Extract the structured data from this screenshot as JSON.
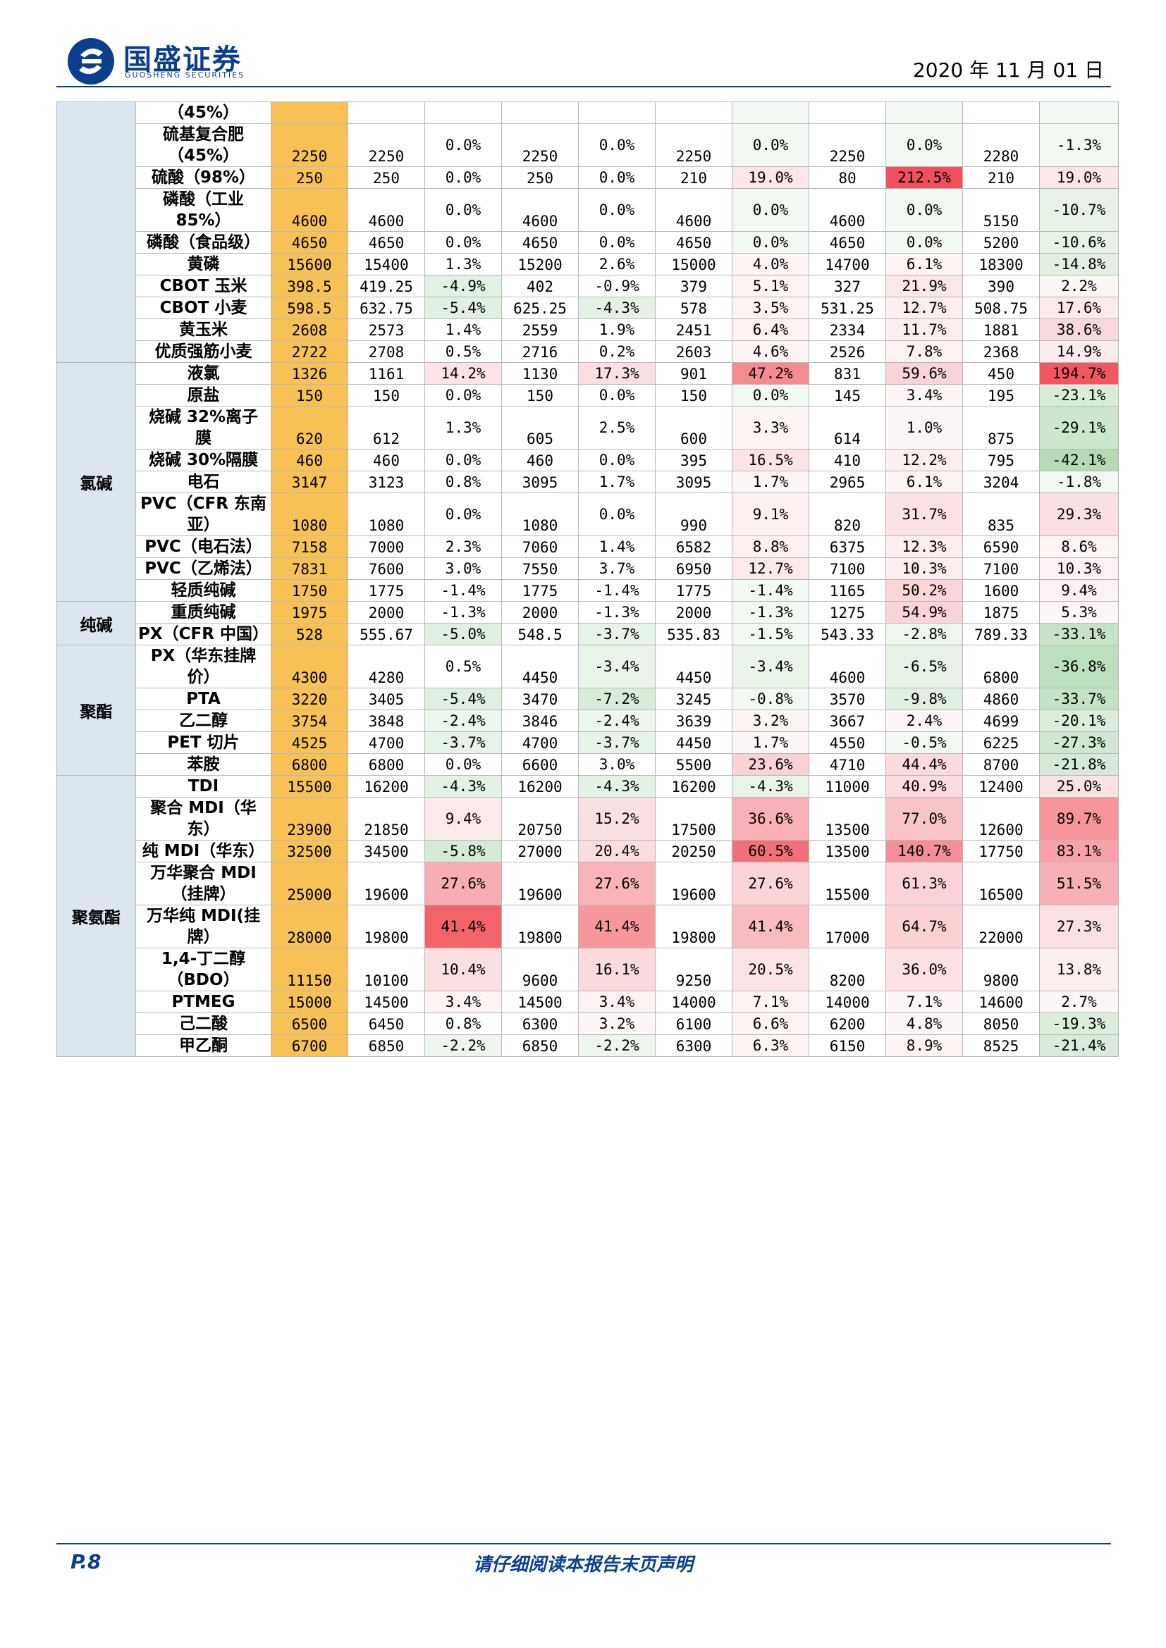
{
  "header": {
    "brand_cn": "国盛证券",
    "brand_en": "GUOSHENG SECURITIES",
    "date": "2020 年 11 月 01 日"
  },
  "colors": {
    "brand": "#0b3f8d",
    "current_col": "#f8c155",
    "group_col": "#dce6f1"
  },
  "groups": [
    {
      "label": "",
      "span": 11
    },
    {
      "label": "氯碱",
      "span": 9
    },
    {
      "label": "纯碱",
      "span": 2
    },
    {
      "label": "聚酯",
      "span": 5
    },
    {
      "label": "聚氨酯",
      "span": 12
    }
  ],
  "rows": [
    {
      "lines": [
        "（45%）"
      ],
      "cur": "",
      "v": [
        "",
        "",
        "",
        "",
        ""
      ],
      "p": [
        "",
        "",
        "",
        "",
        ""
      ],
      "c": [
        "",
        "",
        "#f2f8f2",
        "#f2f8f2",
        "#f2f8f2"
      ]
    },
    {
      "lines": [
        "硫基复合肥",
        "（45%）"
      ],
      "cur": "2250",
      "v": [
        "2250",
        "2250",
        "2250",
        "2250",
        "2280"
      ],
      "p": [
        "0.0%",
        "0.0%",
        "0.0%",
        "0.0%",
        "-1.3%"
      ],
      "c": [
        "",
        "",
        "#f2f8f2",
        "#f2f8f2",
        "#f2f8f2"
      ]
    },
    {
      "lines": [
        "硫酸（98%）"
      ],
      "cur": "250",
      "v": [
        "250",
        "250",
        "210",
        "80",
        "210"
      ],
      "p": [
        "0.0%",
        "0.0%",
        "19.0%",
        "212.5%",
        "19.0%"
      ],
      "c": [
        "",
        "",
        "#fce6e8",
        "#f04f5b",
        "#fce6e8"
      ]
    },
    {
      "lines": [
        "磷酸（工业",
        "85%）"
      ],
      "cur": "4600",
      "v": [
        "4600",
        "4600",
        "4600",
        "4600",
        "5150"
      ],
      "p": [
        "0.0%",
        "0.0%",
        "0.0%",
        "0.0%",
        "-10.7%"
      ],
      "c": [
        "",
        "",
        "#f2f8f2",
        "#f2f8f2",
        "#e6f2e6"
      ]
    },
    {
      "lines": [
        "磷酸（食品级）"
      ],
      "cur": "4650",
      "v": [
        "4650",
        "4650",
        "4650",
        "4650",
        "5200"
      ],
      "p": [
        "0.0%",
        "0.0%",
        "0.0%",
        "0.0%",
        "-10.6%"
      ],
      "c": [
        "",
        "",
        "#f2f8f2",
        "#f2f8f2",
        "#e6f2e6"
      ]
    },
    {
      "lines": [
        "黄磷"
      ],
      "cur": "15600",
      "v": [
        "15400",
        "15200",
        "15000",
        "14700",
        "18300"
      ],
      "p": [
        "1.3%",
        "2.6%",
        "4.0%",
        "6.1%",
        "-14.8%"
      ],
      "c": [
        "",
        "",
        "#fdf4f4",
        "#fdf4f4",
        "#e2f0e2"
      ]
    },
    {
      "lines": [
        "CBOT 玉米"
      ],
      "cur": "398.5",
      "v": [
        "419.25",
        "402",
        "379",
        "327",
        "390"
      ],
      "p": [
        "-4.9%",
        "-0.9%",
        "5.1%",
        "21.9%",
        "2.2%"
      ],
      "c": [
        "#e2f1e3",
        "",
        "#fdf4f4",
        "#fbe7e8",
        "#fdf6f6"
      ]
    },
    {
      "lines": [
        "CBOT 小麦"
      ],
      "cur": "598.5",
      "v": [
        "632.75",
        "625.25",
        "578",
        "531.25",
        "508.75"
      ],
      "p": [
        "-5.4%",
        "-4.3%",
        "3.5%",
        "12.7%",
        "17.6%"
      ],
      "c": [
        "#e0f0e1",
        "#e4f2e5",
        "#fdf4f4",
        "#fcedee",
        "#fce9ea"
      ]
    },
    {
      "lines": [
        "黄玉米"
      ],
      "cur": "2608",
      "v": [
        "2573",
        "2559",
        "2451",
        "2334",
        "1881"
      ],
      "p": [
        "1.4%",
        "1.9%",
        "6.4%",
        "11.7%",
        "38.6%"
      ],
      "c": [
        "",
        "",
        "#fdf1f1",
        "#fcedee",
        "#f9d9dc"
      ]
    },
    {
      "lines": [
        "优质强筋小麦"
      ],
      "cur": "2722",
      "v": [
        "2708",
        "2716",
        "2603",
        "2526",
        "2368"
      ],
      "p": [
        "0.5%",
        "0.2%",
        "4.6%",
        "7.8%",
        "14.9%"
      ],
      "c": [
        "",
        "",
        "#fdf4f4",
        "#fdf1f1",
        "#fcebec"
      ]
    },
    {
      "lines": [
        "",
        ""
      ],
      "cur": "",
      "v": [
        "",
        "",
        "",
        "",
        ""
      ],
      "p": [
        "",
        "",
        "",
        "",
        ""
      ],
      "c": [
        "",
        "",
        "",
        "",
        ""
      ],
      "hidden": true
    },
    {
      "lines": [
        "液氯"
      ],
      "cur": "1326",
      "v": [
        "1161",
        "1130",
        "901",
        "831",
        "450"
      ],
      "p": [
        "14.2%",
        "17.3%",
        "47.2%",
        "59.6%",
        "194.7%"
      ],
      "c": [
        "#fce3e5",
        "#fcdfe1",
        "#f48a92",
        "#fbd4d7",
        "#f2565f"
      ]
    },
    {
      "lines": [
        "原盐"
      ],
      "cur": "150",
      "v": [
        "150",
        "150",
        "150",
        "145",
        "195"
      ],
      "p": [
        "0.0%",
        "0.0%",
        "0.0%",
        "3.4%",
        "-23.1%"
      ],
      "c": [
        "",
        "",
        "#f2f8f2",
        "#fdf6f6",
        "#d8ecd9"
      ]
    },
    {
      "lines": [
        "烧碱 32%离子",
        "膜"
      ],
      "cur": "620",
      "v": [
        "612",
        "605",
        "600",
        "614",
        "875"
      ],
      "p": [
        "1.3%",
        "2.5%",
        "3.3%",
        "1.0%",
        "-29.1%"
      ],
      "c": [
        "",
        "",
        "#fdf4f4",
        "#fdf6f6",
        "#cde7ce"
      ]
    },
    {
      "lines": [
        "烧碱 30%隔膜"
      ],
      "cur": "460",
      "v": [
        "460",
        "460",
        "395",
        "410",
        "795"
      ],
      "p": [
        "0.0%",
        "0.0%",
        "16.5%",
        "12.2%",
        "-42.1%"
      ],
      "c": [
        "",
        "",
        "#fbe4e6",
        "#fcedee",
        "#b4dbb6"
      ]
    },
    {
      "lines": [
        "电石"
      ],
      "cur": "3147",
      "v": [
        "3123",
        "3095",
        "3095",
        "2965",
        "3204"
      ],
      "p": [
        "0.8%",
        "1.7%",
        "1.7%",
        "6.1%",
        "-1.8%"
      ],
      "c": [
        "",
        "",
        "#fdf6f6",
        "#fdf4f4",
        "#f2f8f2"
      ]
    },
    {
      "lines": [
        "PVC（CFR 东南",
        "亚）"
      ],
      "cur": "1080",
      "v": [
        "1080",
        "1080",
        "990",
        "820",
        "835"
      ],
      "p": [
        "0.0%",
        "0.0%",
        "9.1%",
        "31.7%",
        "29.3%"
      ],
      "c": [
        "",
        "",
        "#fdf0f1",
        "#fbe1e3",
        "#fbdfe1"
      ]
    },
    {
      "lines": [
        "PVC（电石法）"
      ],
      "cur": "7158",
      "v": [
        "7000",
        "7060",
        "6582",
        "6375",
        "6590"
      ],
      "p": [
        "2.3%",
        "1.4%",
        "8.8%",
        "12.3%",
        "8.6%"
      ],
      "c": [
        "",
        "",
        "#fdf0f1",
        "#fcedee",
        "#fdf4f4"
      ]
    },
    {
      "lines": [
        "PVC（乙烯法）"
      ],
      "cur": "7831",
      "v": [
        "7600",
        "7550",
        "6950",
        "7100",
        "7100"
      ],
      "p": [
        "3.0%",
        "3.7%",
        "12.7%",
        "10.3%",
        "10.3%"
      ],
      "c": [
        "",
        "",
        "#fceaeb",
        "#fcedee",
        "#fdf2f3"
      ]
    },
    {
      "lines": [
        "轻质纯碱"
      ],
      "cur": "1750",
      "v": [
        "1775",
        "1775",
        "1775",
        "1165",
        "1600"
      ],
      "p": [
        "-1.4%",
        "-1.4%",
        "-1.4%",
        "50.2%",
        "9.4%"
      ],
      "c": [
        "",
        "",
        "#f2f8f2",
        "#fbd6d9",
        "#fdf2f3"
      ]
    },
    {
      "lines": [
        "重质纯碱"
      ],
      "cur": "1975",
      "v": [
        "2000",
        "2000",
        "2000",
        "1275",
        "1875"
      ],
      "p": [
        "-1.3%",
        "-1.3%",
        "-1.3%",
        "54.9%",
        "5.3%"
      ],
      "c": [
        "",
        "",
        "#f2f8f2",
        "#fbd4d7",
        "#fdf6f6"
      ]
    },
    {
      "lines": [
        "PX（CFR 中国）"
      ],
      "cur": "528",
      "v": [
        "555.67",
        "548.5",
        "535.83",
        "543.33",
        "789.33"
      ],
      "p": [
        "-5.0%",
        "-3.7%",
        "-1.5%",
        "-2.8%",
        "-33.1%"
      ],
      "c": [
        "#e0f0e1",
        "#e6f3e7",
        "#f2f8f2",
        "#eef6ee",
        "#c6e3c7"
      ]
    },
    {
      "lines": [
        "PX（华东挂牌",
        "价）"
      ],
      "cur": "4300",
      "v": [
        "4280",
        "4450",
        "4450",
        "4600",
        "6800"
      ],
      "p": [
        "0.5%",
        "-3.4%",
        "-3.4%",
        "-6.5%",
        "-36.8%"
      ],
      "c": [
        "",
        "#e8f4e8",
        "#e8f4e8",
        "#e6f2e6",
        "#bcdfbe"
      ]
    },
    {
      "lines": [
        "PTA"
      ],
      "cur": "3220",
      "v": [
        "3405",
        "3470",
        "3245",
        "3570",
        "4860"
      ],
      "p": [
        "-5.4%",
        "-7.2%",
        "-0.8%",
        "-9.8%",
        "-33.7%"
      ],
      "c": [
        "#dff0e0",
        "#d8ecd9",
        "#f2f8f2",
        "#e2f0e2",
        "#c4e2c5"
      ]
    },
    {
      "lines": [
        "乙二醇"
      ],
      "cur": "3754",
      "v": [
        "3848",
        "3846",
        "3639",
        "3667",
        "4699"
      ],
      "p": [
        "-2.4%",
        "-2.4%",
        "3.2%",
        "2.4%",
        "-20.1%"
      ],
      "c": [
        "#ecf6ec",
        "#ecf6ec",
        "#fdf4f4",
        "#fdf6f6",
        "#dbedda"
      ]
    },
    {
      "lines": [
        "PET 切片"
      ],
      "cur": "4525",
      "v": [
        "4700",
        "4700",
        "4450",
        "4550",
        "6225"
      ],
      "p": [
        "-3.7%",
        "-3.7%",
        "1.7%",
        "-0.5%",
        "-27.3%"
      ],
      "c": [
        "#e6f3e7",
        "#e6f3e7",
        "#fdf6f6",
        "#f2f8f2",
        "#d0e8d1"
      ]
    },
    {
      "lines": [
        "苯胺"
      ],
      "cur": "6800",
      "v": [
        "6800",
        "6600",
        "5500",
        "4710",
        "8700"
      ],
      "p": [
        "0.0%",
        "3.0%",
        "23.6%",
        "44.4%",
        "-21.8%"
      ],
      "c": [
        "",
        "",
        "#fad2d5",
        "#fbdadd",
        "#d6ebd7"
      ]
    },
    {
      "lines": [
        "TDI"
      ],
      "cur": "15500",
      "v": [
        "16200",
        "16200",
        "16200",
        "11000",
        "12400"
      ],
      "p": [
        "-4.3%",
        "-4.3%",
        "-4.3%",
        "40.9%",
        "25.0%"
      ],
      "c": [
        "#e4f2e5",
        "#e4f2e5",
        "#e8f4e8",
        "#fbdcdf",
        "#fbe3e5"
      ]
    },
    {
      "lines": [
        "聚合 MDI（华",
        "东）"
      ],
      "cur": "23900",
      "v": [
        "21850",
        "20750",
        "17500",
        "13500",
        "12600"
      ],
      "p": [
        "9.4%",
        "15.2%",
        "36.6%",
        "77.0%",
        "89.7%"
      ],
      "c": [
        "#fce9ea",
        "#fbe0e2",
        "#f8b2b7",
        "#f8c4c8",
        "#f5949b"
      ]
    },
    {
      "lines": [
        "纯 MDI（华东）"
      ],
      "cur": "32500",
      "v": [
        "34500",
        "27000",
        "20250",
        "13500",
        "17750"
      ],
      "p": [
        "-5.8%",
        "20.4%",
        "60.5%",
        "140.7%",
        "83.1%"
      ],
      "c": [
        "#d6ebd7",
        "#fbdcdf",
        "#f27079",
        "#f58f97",
        "#f6a2a8"
      ]
    },
    {
      "lines": [
        "万华聚合 MDI",
        "（挂牌）"
      ],
      "cur": "25000",
      "v": [
        "19600",
        "19600",
        "19600",
        "15500",
        "16500"
      ],
      "p": [
        "27.6%",
        "27.6%",
        "27.6%",
        "61.3%",
        "51.5%"
      ],
      "c": [
        "#f7adb2",
        "#f8b4b9",
        "#fbd4d7",
        "#fbd3d6",
        "#f7b1b6"
      ]
    },
    {
      "lines": [
        "万华纯 MDI(挂",
        "牌）"
      ],
      "cur": "28000",
      "v": [
        "19800",
        "19800",
        "19800",
        "17000",
        "22000"
      ],
      "p": [
        "41.4%",
        "41.4%",
        "41.4%",
        "64.7%",
        "27.3%"
      ],
      "c": [
        "#f2636c",
        "#f6979e",
        "#f8bcc0",
        "#fbd1d4",
        "#fbe1e3"
      ]
    },
    {
      "lines": [
        "1,4-丁二醇",
        "（BDO）"
      ],
      "cur": "11150",
      "v": [
        "10100",
        "9600",
        "9250",
        "8200",
        "9800"
      ],
      "p": [
        "10.4%",
        "16.1%",
        "20.5%",
        "36.0%",
        "13.8%"
      ],
      "c": [
        "#fbdfe1",
        "#fbdadd",
        "#fce4e6",
        "#fbe1e3",
        "#fcedee"
      ]
    },
    {
      "lines": [
        "PTMEG"
      ],
      "cur": "15000",
      "v": [
        "14500",
        "14500",
        "14000",
        "14000",
        "14600"
      ],
      "p": [
        "3.4%",
        "3.4%",
        "7.1%",
        "7.1%",
        "2.7%"
      ],
      "c": [
        "#fdf4f4",
        "#fdf2f3",
        "#fdf4f4",
        "#fdf6f6",
        "#fdf6f6"
      ]
    },
    {
      "lines": [
        "己二酸"
      ],
      "cur": "6500",
      "v": [
        "6450",
        "6300",
        "6100",
        "6200",
        "8050"
      ],
      "p": [
        "0.8%",
        "3.2%",
        "6.6%",
        "4.8%",
        "-19.3%"
      ],
      "c": [
        "",
        "#fdf6f6",
        "#fdf4f4",
        "#fdf6f6",
        "#dcedda"
      ]
    },
    {
      "lines": [
        "甲乙酮"
      ],
      "cur": "6700",
      "v": [
        "6850",
        "6850",
        "6300",
        "6150",
        "8525"
      ],
      "p": [
        "-2.2%",
        "-2.2%",
        "6.3%",
        "8.9%",
        "-21.4%"
      ],
      "c": [
        "#ecf6ec",
        "#ecf6ec",
        "#fdf4f4",
        "#fdf4f4",
        "#d8ecd9"
      ]
    }
  ],
  "footer": {
    "page": "P.8",
    "disclaimer": "请仔细阅读本报告末页声明"
  }
}
